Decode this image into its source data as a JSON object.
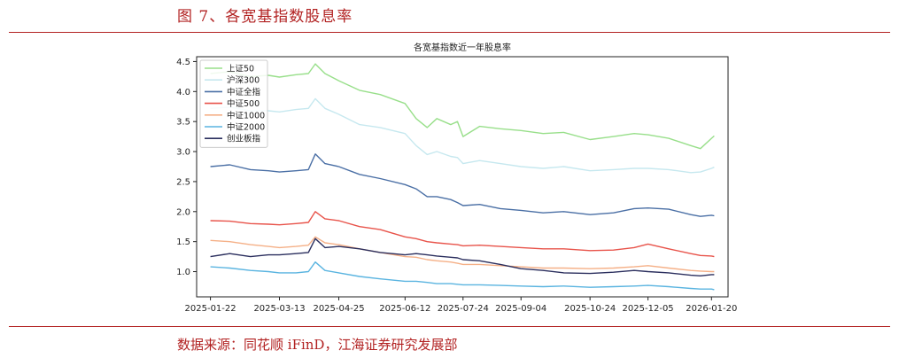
{
  "figure": {
    "title": "图 7、各宽基指数股息率",
    "source": "数据来源：同花顺 iFinD，江海证券研究发展部"
  },
  "chart_data": {
    "type": "line",
    "title": "各宽基指数近一年股息率",
    "xlabel": "",
    "ylabel": "",
    "x_ticks": [
      "2025-01-22",
      "2025-03-13",
      "2025-04-25",
      "2025-06-12",
      "2025-07-24",
      "2025-09-04",
      "2025-10-24",
      "2025-12-05",
      "2026-01-20"
    ],
    "ylim": [
      0.58,
      4.58
    ],
    "y_ticks": [
      1.0,
      1.5,
      2.0,
      2.5,
      3.0,
      3.5,
      4.0,
      4.5
    ],
    "grid": false,
    "legend_position": "top-left",
    "x": [
      "2025-01-22",
      "2025-02-05",
      "2025-02-20",
      "2025-03-05",
      "2025-03-13",
      "2025-03-25",
      "2025-04-03",
      "2025-04-08",
      "2025-04-15",
      "2025-04-25",
      "2025-05-10",
      "2025-05-25",
      "2025-06-12",
      "2025-06-20",
      "2025-06-28",
      "2025-07-05",
      "2025-07-15",
      "2025-07-20",
      "2025-07-24",
      "2025-08-05",
      "2025-08-20",
      "2025-09-04",
      "2025-09-20",
      "2025-10-05",
      "2025-10-24",
      "2025-11-10",
      "2025-11-25",
      "2025-12-05",
      "2025-12-20",
      "2026-01-05",
      "2026-01-12",
      "2026-01-20",
      "2026-01-22"
    ],
    "series": [
      {
        "name": "上证50",
        "color": "#98df8a",
        "values": [
          4.3,
          4.33,
          4.25,
          4.27,
          4.24,
          4.28,
          4.3,
          4.46,
          4.3,
          4.18,
          4.02,
          3.95,
          3.8,
          3.55,
          3.4,
          3.55,
          3.45,
          3.5,
          3.25,
          3.42,
          3.38,
          3.35,
          3.3,
          3.32,
          3.2,
          3.25,
          3.3,
          3.28,
          3.22,
          3.1,
          3.05,
          3.22,
          3.26
        ]
      },
      {
        "name": "沪深300",
        "color": "#c6e8ef",
        "values": [
          3.72,
          3.74,
          3.68,
          3.68,
          3.66,
          3.7,
          3.72,
          3.88,
          3.72,
          3.62,
          3.45,
          3.4,
          3.3,
          3.1,
          2.95,
          3.0,
          2.92,
          2.9,
          2.8,
          2.85,
          2.8,
          2.75,
          2.72,
          2.75,
          2.68,
          2.7,
          2.72,
          2.72,
          2.7,
          2.65,
          2.66,
          2.72,
          2.74
        ]
      },
      {
        "name": "中证全指",
        "color": "#4a6fa5",
        "values": [
          2.75,
          2.78,
          2.7,
          2.68,
          2.66,
          2.68,
          2.7,
          2.96,
          2.8,
          2.75,
          2.62,
          2.55,
          2.45,
          2.38,
          2.25,
          2.25,
          2.2,
          2.15,
          2.1,
          2.12,
          2.05,
          2.02,
          1.98,
          2.0,
          1.95,
          1.98,
          2.05,
          2.06,
          2.04,
          1.95,
          1.92,
          1.94,
          1.93
        ]
      },
      {
        "name": "中证500",
        "color": "#e8534a",
        "values": [
          1.85,
          1.84,
          1.8,
          1.79,
          1.78,
          1.8,
          1.82,
          2.0,
          1.88,
          1.85,
          1.75,
          1.7,
          1.58,
          1.55,
          1.5,
          1.48,
          1.46,
          1.45,
          1.43,
          1.44,
          1.42,
          1.4,
          1.38,
          1.38,
          1.35,
          1.36,
          1.4,
          1.46,
          1.38,
          1.3,
          1.27,
          1.26,
          1.25
        ]
      },
      {
        "name": "中证1000",
        "color": "#f5b087",
        "values": [
          1.52,
          1.5,
          1.45,
          1.42,
          1.4,
          1.42,
          1.44,
          1.58,
          1.48,
          1.45,
          1.38,
          1.32,
          1.25,
          1.24,
          1.2,
          1.18,
          1.16,
          1.14,
          1.12,
          1.12,
          1.1,
          1.08,
          1.06,
          1.06,
          1.05,
          1.06,
          1.08,
          1.1,
          1.06,
          1.02,
          1.01,
          1.0,
          1.0
        ]
      },
      {
        "name": "中证2000",
        "color": "#5ab4e0",
        "values": [
          1.08,
          1.06,
          1.02,
          1.0,
          0.98,
          0.98,
          1.0,
          1.16,
          1.02,
          0.98,
          0.92,
          0.88,
          0.84,
          0.84,
          0.82,
          0.8,
          0.8,
          0.79,
          0.78,
          0.78,
          0.77,
          0.76,
          0.75,
          0.76,
          0.74,
          0.75,
          0.76,
          0.77,
          0.75,
          0.72,
          0.71,
          0.71,
          0.7
        ]
      },
      {
        "name": "创业板指",
        "color": "#2b2f5e",
        "values": [
          1.25,
          1.3,
          1.25,
          1.28,
          1.28,
          1.3,
          1.32,
          1.55,
          1.4,
          1.42,
          1.38,
          1.32,
          1.28,
          1.3,
          1.28,
          1.26,
          1.24,
          1.23,
          1.2,
          1.18,
          1.12,
          1.05,
          1.02,
          0.98,
          0.97,
          0.99,
          1.02,
          1.0,
          0.98,
          0.94,
          0.93,
          0.95,
          0.95
        ]
      }
    ]
  }
}
